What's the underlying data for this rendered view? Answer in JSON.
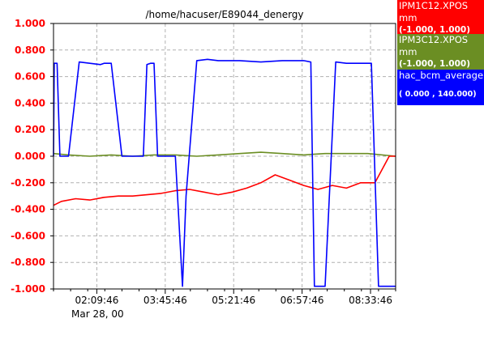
{
  "chart_data": {
    "type": "line",
    "title": "/home/hacuser/E89044_denergy",
    "xlabel": "",
    "ylabel": "",
    "ylim": [
      -1.0,
      1.0
    ],
    "y_ticks": [
      "1.000",
      "0.800",
      "0.600",
      "0.400",
      "0.200",
      "0.000",
      "-0.200",
      "-0.400",
      "-0.600",
      "-0.800",
      "-1.000"
    ],
    "x_ticks": [
      "02:09:46",
      "03:45:46",
      "05:21:46",
      "06:57:46",
      "08:33:46"
    ],
    "x_date_label": "Mar 28, 00",
    "x_range": [
      "01:09:00",
      "09:09:00"
    ],
    "grid": true,
    "legend_position": "right",
    "series": [
      {
        "name": "IPM1C12.XPOS",
        "unit": "mm",
        "range": "(-1.000,  1.000)",
        "color": "#ff0000",
        "x": [
          "01:09",
          "01:20",
          "01:40",
          "02:00",
          "02:20",
          "02:40",
          "03:00",
          "03:20",
          "03:40",
          "04:00",
          "04:20",
          "04:40",
          "05:00",
          "05:20",
          "05:40",
          "06:00",
          "06:20",
          "06:40",
          "07:00",
          "07:20",
          "07:40",
          "08:00",
          "08:20",
          "08:40",
          "09:00",
          "09:09"
        ],
        "values": [
          -0.37,
          -0.34,
          -0.32,
          -0.33,
          -0.31,
          -0.3,
          -0.3,
          -0.29,
          -0.28,
          -0.26,
          -0.25,
          -0.27,
          -0.29,
          -0.27,
          -0.24,
          -0.2,
          -0.14,
          -0.18,
          -0.22,
          -0.25,
          -0.22,
          -0.24,
          -0.2,
          -0.2,
          0.0,
          0.0
        ]
      },
      {
        "name": "IPM3C12.XPOS",
        "unit": "mm",
        "range": "(-1.000,  1.000)",
        "color": "#6b8e23",
        "x": [
          "01:09",
          "01:30",
          "02:00",
          "02:30",
          "03:00",
          "03:30",
          "04:00",
          "04:30",
          "05:00",
          "05:30",
          "06:00",
          "06:30",
          "07:00",
          "07:30",
          "08:00",
          "08:30",
          "09:09"
        ],
        "values": [
          0.02,
          0.01,
          0.0,
          0.01,
          0.0,
          0.01,
          0.01,
          0.0,
          0.01,
          0.02,
          0.03,
          0.02,
          0.01,
          0.02,
          0.02,
          0.02,
          0.0
        ]
      },
      {
        "name": "hac_bcm_average",
        "unit": "",
        "range": "( 0.000 ,  140.000)",
        "color": "#0000ff",
        "x": [
          "01:09",
          "01:10",
          "01:12",
          "01:14",
          "01:18",
          "01:20",
          "01:30",
          "01:45",
          "02:00",
          "02:15",
          "02:20",
          "02:30",
          "02:45",
          "03:00",
          "03:15",
          "03:20",
          "03:25",
          "03:30",
          "03:35",
          "03:45",
          "04:00",
          "04:10",
          "04:15",
          "04:30",
          "04:45",
          "05:00",
          "05:30",
          "06:00",
          "06:30",
          "07:00",
          "07:10",
          "07:15",
          "07:30",
          "07:45",
          "08:00",
          "08:30",
          "08:35",
          "08:45",
          "09:09"
        ],
        "values": [
          0.0,
          0.7,
          0.7,
          0.7,
          0.0,
          0.0,
          0.0,
          0.71,
          0.7,
          0.69,
          0.7,
          0.7,
          0.0,
          0.0,
          0.0,
          0.69,
          0.7,
          0.7,
          0.0,
          0.0,
          0.0,
          -0.98,
          -0.3,
          0.72,
          0.73,
          0.72,
          0.72,
          0.71,
          0.72,
          0.72,
          0.71,
          -0.98,
          -0.98,
          0.71,
          0.7,
          0.7,
          0.7,
          -0.98,
          -0.98
        ]
      }
    ]
  }
}
